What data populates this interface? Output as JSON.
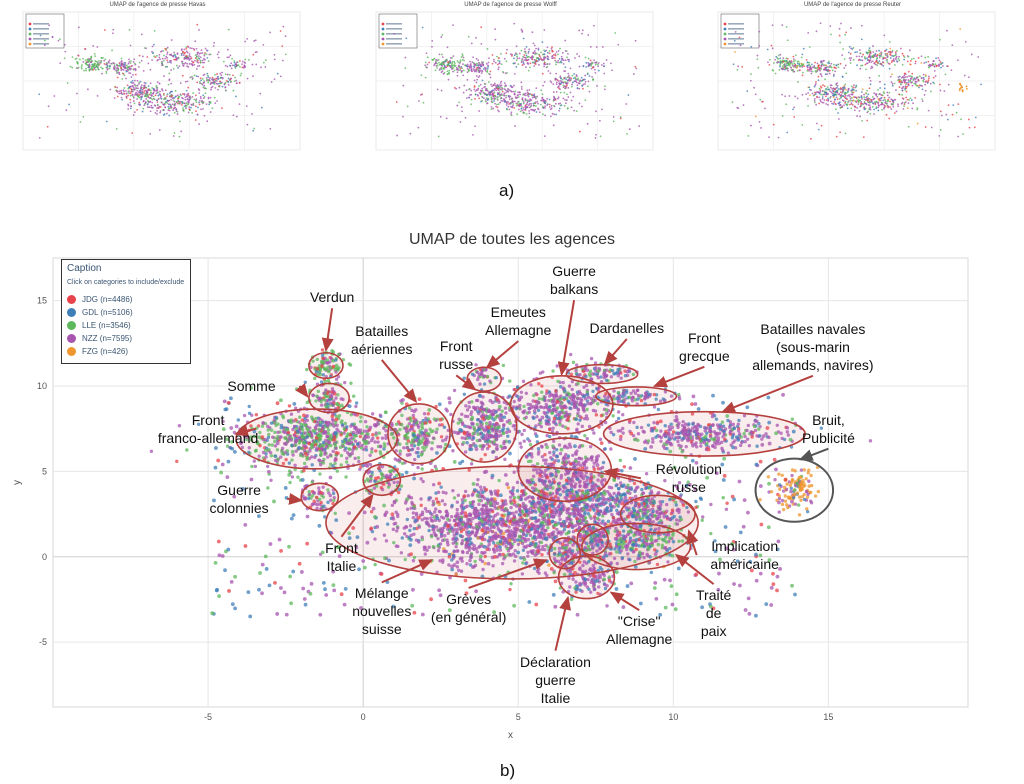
{
  "panels_small": [
    {
      "title": "UMAP de l'agence de presse Havas"
    },
    {
      "title": "UMAP de l'agence de presse Wolff"
    },
    {
      "title": "UMAP de l'agence de presse Reuter"
    }
  ],
  "label_a": "a)",
  "label_b": "b)",
  "chart_data": {
    "type": "scatter",
    "title": "UMAP de toutes les agences",
    "xlabel": "x",
    "ylabel": "y",
    "xlim": [
      -10,
      19.5
    ],
    "ylim": [
      -8.8,
      17.5
    ],
    "xticks": [
      -5,
      0,
      5,
      10,
      15
    ],
    "yticks": [
      -5,
      0,
      5,
      10,
      15
    ],
    "grid": true,
    "legend_placement": "top-left",
    "legend": {
      "title": "Caption",
      "subtitle": "Click on categories to include/exclude",
      "items": [
        {
          "name": "JDG (n=4486)",
          "color": "#e8434b"
        },
        {
          "name": "GDL (n=5106)",
          "color": "#3f7fb8"
        },
        {
          "name": "LLE (n=3546)",
          "color": "#5cb85c"
        },
        {
          "name": "NZZ (n=7595)",
          "color": "#a855b0"
        },
        {
          "name": "FZG (n=426)",
          "color": "#f0962e"
        }
      ]
    },
    "clusters": [
      {
        "cx": -1.2,
        "cy": 11.2,
        "rx": 0.6,
        "ry": 0.9,
        "n": 90,
        "mix": [
          0.1,
          0.1,
          0.5,
          0.3,
          0
        ]
      },
      {
        "cx": -1.1,
        "cy": 9.3,
        "rx": 0.6,
        "ry": 0.9,
        "n": 90,
        "mix": [
          0.1,
          0.1,
          0.4,
          0.4,
          0
        ]
      },
      {
        "cx": -1.6,
        "cy": 6.9,
        "rx": 2.6,
        "ry": 1.7,
        "n": 700,
        "mix": [
          0.08,
          0.1,
          0.4,
          0.42,
          0
        ]
      },
      {
        "cx": 1.8,
        "cy": 7.2,
        "rx": 1.0,
        "ry": 1.6,
        "n": 180,
        "mix": [
          0.08,
          0.12,
          0.4,
          0.4,
          0
        ]
      },
      {
        "cx": 0.6,
        "cy": 4.5,
        "rx": 0.7,
        "ry": 1.0,
        "n": 70,
        "mix": [
          0.1,
          0.1,
          0.3,
          0.5,
          0
        ]
      },
      {
        "cx": -1.4,
        "cy": 3.4,
        "rx": 0.6,
        "ry": 0.8,
        "n": 60,
        "mix": [
          0.1,
          0.1,
          0.3,
          0.5,
          0
        ]
      },
      {
        "cx": 4.0,
        "cy": 7.6,
        "rx": 1.0,
        "ry": 2.0,
        "n": 300,
        "mix": [
          0.05,
          0.15,
          0.2,
          0.6,
          0
        ]
      },
      {
        "cx": 3.9,
        "cy": 10.6,
        "rx": 0.5,
        "ry": 0.7,
        "n": 30,
        "mix": [
          0.05,
          0.1,
          0.3,
          0.55,
          0
        ]
      },
      {
        "cx": 6.4,
        "cy": 8.8,
        "rx": 1.6,
        "ry": 1.7,
        "n": 350,
        "mix": [
          0.06,
          0.14,
          0.15,
          0.65,
          0
        ]
      },
      {
        "cx": 7.6,
        "cy": 10.8,
        "rx": 1.2,
        "ry": 0.5,
        "n": 90,
        "mix": [
          0.05,
          0.2,
          0.15,
          0.6,
          0
        ]
      },
      {
        "cx": 8.8,
        "cy": 9.4,
        "rx": 1.3,
        "ry": 0.5,
        "n": 80,
        "mix": [
          0.05,
          0.2,
          0.15,
          0.6,
          0
        ]
      },
      {
        "cx": 6.5,
        "cy": 5.1,
        "rx": 1.5,
        "ry": 1.6,
        "n": 280,
        "mix": [
          0.05,
          0.14,
          0.11,
          0.7,
          0
        ]
      },
      {
        "cx": 11.0,
        "cy": 7.2,
        "rx": 2.5,
        "ry": 0.9,
        "n": 350,
        "mix": [
          0.06,
          0.24,
          0.1,
          0.6,
          0
        ]
      },
      {
        "cx": 13.9,
        "cy": 3.9,
        "rx": 0.8,
        "ry": 1.2,
        "n": 120,
        "mix": [
          0.02,
          0.05,
          0.03,
          0.2,
          0.7
        ]
      },
      {
        "cx": 4.6,
        "cy": 1.8,
        "rx": 3.6,
        "ry": 2.2,
        "n": 1300,
        "mix": [
          0.05,
          0.12,
          0.1,
          0.71,
          0.02
        ]
      },
      {
        "cx": 9.3,
        "cy": 2.5,
        "rx": 1.2,
        "ry": 1.0,
        "n": 120,
        "mix": [
          0.05,
          0.25,
          0.2,
          0.5,
          0
        ]
      },
      {
        "cx": 8.8,
        "cy": 0.8,
        "rx": 1.6,
        "ry": 1.1,
        "n": 220,
        "mix": [
          0.05,
          0.22,
          0.3,
          0.43,
          0
        ]
      },
      {
        "cx": 7.4,
        "cy": 1.0,
        "rx": 0.5,
        "ry": 0.8,
        "n": 60,
        "mix": [
          0.05,
          0.2,
          0.2,
          0.55,
          0
        ]
      },
      {
        "cx": 6.5,
        "cy": 0.2,
        "rx": 0.5,
        "ry": 0.8,
        "n": 60,
        "mix": [
          0.05,
          0.2,
          0.2,
          0.55,
          0
        ]
      },
      {
        "cx": 7.2,
        "cy": -1.2,
        "rx": 0.9,
        "ry": 1.2,
        "n": 120,
        "mix": [
          0.05,
          0.2,
          0.1,
          0.65,
          0
        ]
      },
      {
        "cx": 7.5,
        "cy": 3.2,
        "rx": 3.0,
        "ry": 1.5,
        "n": 500,
        "mix": [
          0.08,
          0.22,
          0.12,
          0.58,
          0
        ]
      },
      {
        "cx": 4.5,
        "cy": 3.0,
        "rx": 9.5,
        "ry": 6.5,
        "n": 500,
        "mix": [
          0.15,
          0.3,
          0.2,
          0.35,
          0
        ],
        "sparse": true
      }
    ],
    "regions": [
      {
        "cx": -1.2,
        "cy": 11.2,
        "rx": 0.55,
        "ry": 0.75
      },
      {
        "cx": -1.1,
        "cy": 9.3,
        "rx": 0.65,
        "ry": 0.85
      },
      {
        "cx": -1.5,
        "cy": 6.9,
        "rx": 2.6,
        "ry": 1.75
      },
      {
        "cx": 1.8,
        "cy": 7.2,
        "rx": 1.0,
        "ry": 1.75
      },
      {
        "cx": 0.6,
        "cy": 4.5,
        "rx": 0.6,
        "ry": 0.9
      },
      {
        "cx": -1.4,
        "cy": 3.5,
        "rx": 0.6,
        "ry": 0.8
      },
      {
        "cx": 3.9,
        "cy": 7.6,
        "rx": 1.05,
        "ry": 2.05
      },
      {
        "cx": 3.9,
        "cy": 10.4,
        "rx": 0.55,
        "ry": 0.7
      },
      {
        "cx": 6.4,
        "cy": 8.9,
        "rx": 1.65,
        "ry": 1.7
      },
      {
        "cx": 7.7,
        "cy": 10.7,
        "rx": 1.15,
        "ry": 0.55
      },
      {
        "cx": 8.8,
        "cy": 9.4,
        "rx": 1.3,
        "ry": 0.55
      },
      {
        "cx": 6.5,
        "cy": 5.1,
        "rx": 1.5,
        "ry": 1.85
      },
      {
        "cx": 11.0,
        "cy": 7.2,
        "rx": 3.25,
        "ry": 1.3
      },
      {
        "cx": 4.8,
        "cy": 2.0,
        "rx": 6.0,
        "ry": 3.3
      },
      {
        "cx": 9.5,
        "cy": 2.5,
        "rx": 1.2,
        "ry": 1.1
      },
      {
        "cx": 8.8,
        "cy": 0.6,
        "rx": 1.75,
        "ry": 1.35
      },
      {
        "cx": 7.4,
        "cy": 1.0,
        "rx": 0.5,
        "ry": 0.9
      },
      {
        "cx": 6.5,
        "cy": 0.2,
        "rx": 0.5,
        "ry": 0.9
      },
      {
        "cx": 7.2,
        "cy": -1.2,
        "rx": 0.9,
        "ry": 1.25
      }
    ],
    "noise_region": {
      "cx": 13.9,
      "cy": 3.9,
      "rx": 1.25,
      "ry": 1.85
    },
    "annotations": [
      {
        "text": "Verdun",
        "tx": -1.0,
        "ty": 15.2,
        "ax": -1.2,
        "ay": 12.1
      },
      {
        "text": "Somme",
        "tx": -3.6,
        "ty": 10.0,
        "ax": -1.8,
        "ay": 9.4
      },
      {
        "text": "Front\nfranco-allemand",
        "tx": -5.0,
        "ty": 7.5,
        "ax": -4.1,
        "ay": 7.2
      },
      {
        "text": "Batailles\naériennes",
        "tx": 0.6,
        "ty": 12.7,
        "ax": 1.7,
        "ay": 9.1
      },
      {
        "text": "Front\nrusse",
        "tx": 3.0,
        "ty": 11.8,
        "ax": 3.6,
        "ay": 9.8
      },
      {
        "text": "Emeutes\nAllemagne",
        "tx": 5.0,
        "ty": 13.8,
        "ax": 4.0,
        "ay": 11.1
      },
      {
        "text": "Guerre\nbalkans",
        "tx": 6.8,
        "ty": 16.2,
        "ax": 6.4,
        "ay": 10.7
      },
      {
        "text": "Dardanelles",
        "tx": 8.5,
        "ty": 13.4,
        "ax": 7.8,
        "ay": 11.3
      },
      {
        "text": "Front\ngrecque",
        "tx": 11.0,
        "ty": 12.3,
        "ax": 9.4,
        "ay": 10.0
      },
      {
        "text": "Batailles navales\n(sous-marin\nallemands, navires)",
        "tx": 14.5,
        "ty": 12.3,
        "ax": 11.6,
        "ay": 8.5
      },
      {
        "text": "Bruit,\nPublicité",
        "tx": 15.0,
        "ty": 7.5,
        "ax": 14.1,
        "ay": 5.7
      },
      {
        "text": "Révolution\nrusse",
        "tx": 10.5,
        "ty": 4.6,
        "ax": 7.8,
        "ay": 5.0
      },
      {
        "text": "Guerre\ncolonnies",
        "tx": -4.0,
        "ty": 3.4,
        "ax": -2.0,
        "ay": 3.3
      },
      {
        "text": "Front\nItalie",
        "tx": -0.7,
        "ty": 0.0,
        "ax": 0.3,
        "ay": 3.6
      },
      {
        "text": "Mélange\nnouvelles\nsuisse",
        "tx": 0.6,
        "ty": -3.2,
        "ax": 2.2,
        "ay": -0.2
      },
      {
        "text": "Grèves\n(en général)",
        "tx": 3.4,
        "ty": -3.0,
        "ax": 5.9,
        "ay": -0.2
      },
      {
        "text": "Implication\naméricaine",
        "tx": 12.3,
        "ty": 0.1,
        "ax": 10.5,
        "ay": 1.5
      },
      {
        "text": "Traité\nde\npaix",
        "tx": 11.3,
        "ty": -3.3,
        "ax": 10.1,
        "ay": 0.1
      },
      {
        "text": "\"Crise\"\nAllemagne",
        "tx": 8.9,
        "ty": -4.3,
        "ax": 8.0,
        "ay": -2.1
      },
      {
        "text": "Déclaration\nguerre\nItalie",
        "tx": 6.2,
        "ty": -7.2,
        "ax": 6.6,
        "ay": -2.4
      }
    ]
  }
}
